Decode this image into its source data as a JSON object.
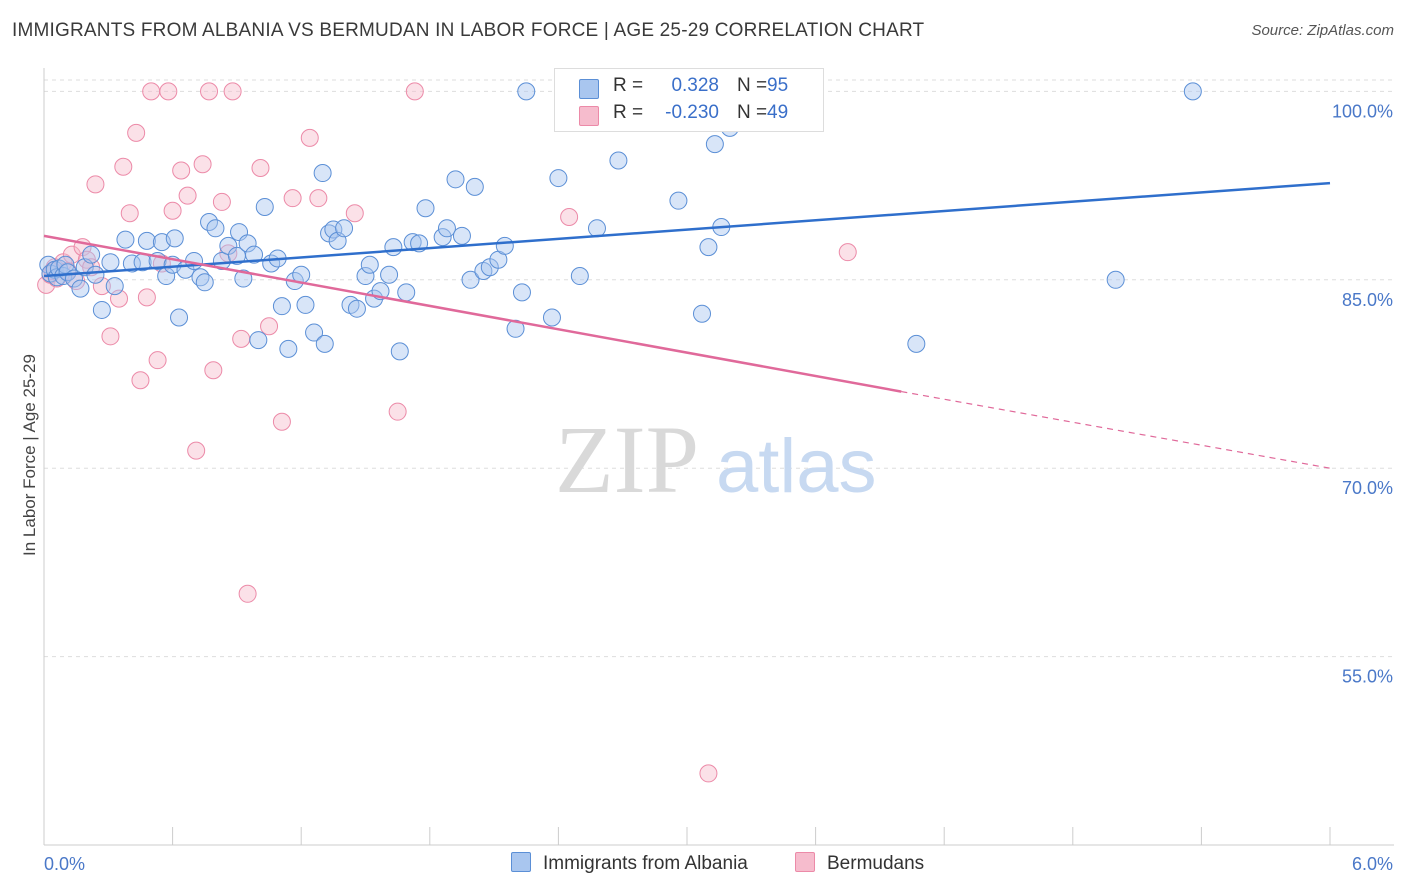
{
  "title": "IMMIGRANTS FROM ALBANIA VS BERMUDAN IN LABOR FORCE | AGE 25-29 CORRELATION CHART",
  "source": "Source: ZipAtlas.com",
  "colors": {
    "blue_fill": "#a9c6ef",
    "blue_stroke": "#5b8fd6",
    "blue_line": "#2f6fcc",
    "pink_fill": "#f6bccd",
    "pink_stroke": "#ec8aa8",
    "pink_line": "#e0699a",
    "grid": "#dddddd",
    "tick_text": "#4a78c8"
  },
  "legend_top": {
    "rows": [
      {
        "r_label": "R =",
        "r_value": "0.328",
        "n_label": "N =",
        "n_value": "95",
        "series": "blue"
      },
      {
        "r_label": "R =",
        "r_value": "-0.230",
        "n_label": "N =",
        "n_value": "49",
        "series": "pink"
      }
    ]
  },
  "legend_bottom": {
    "items": [
      {
        "label": "Immigrants from Albania",
        "series": "blue"
      },
      {
        "label": "Bermudans",
        "series": "pink"
      }
    ]
  },
  "watermark": {
    "zip": "ZIP",
    "atlas": "atlas"
  },
  "chart_data": {
    "type": "scatter",
    "title": "IMMIGRANTS FROM ALBANIA VS BERMUDAN IN LABOR FORCE | AGE 25-29 CORRELATION CHART",
    "xlabel": "",
    "ylabel": "In Labor Force | Age 25-29",
    "xlim": [
      0,
      6
    ],
    "ylim": [
      40,
      102.5
    ],
    "x_tick_labels": [
      "0.0%",
      "6.0%"
    ],
    "y_tick_labels": [
      {
        "value": 100,
        "label": "100.0%"
      },
      {
        "value": 85,
        "label": "85.0%"
      },
      {
        "value": 70,
        "label": "70.0%"
      },
      {
        "value": 55,
        "label": "55.0%"
      }
    ],
    "grid": true,
    "series": [
      {
        "name": "Immigrants from Albania",
        "color": "#5b8fd6",
        "trend": {
          "x": [
            0.0,
            6.0
          ],
          "y": [
            85.3,
            92.7
          ],
          "r": 0.328,
          "n": 95
        },
        "points": [
          [
            0.02,
            86.2
          ],
          [
            0.03,
            85.5
          ],
          [
            0.05,
            85.8
          ],
          [
            0.06,
            85.2
          ],
          [
            0.07,
            85.9
          ],
          [
            0.09,
            85.3
          ],
          [
            0.1,
            86.2
          ],
          [
            0.11,
            85.6
          ],
          [
            0.14,
            85.1
          ],
          [
            0.17,
            84.3
          ],
          [
            0.19,
            86.0
          ],
          [
            0.22,
            87.0
          ],
          [
            0.24,
            85.4
          ],
          [
            0.27,
            82.6
          ],
          [
            0.31,
            86.4
          ],
          [
            0.33,
            84.5
          ],
          [
            0.38,
            88.2
          ],
          [
            0.41,
            86.3
          ],
          [
            0.46,
            86.4
          ],
          [
            0.48,
            88.1
          ],
          [
            0.53,
            86.5
          ],
          [
            0.55,
            88.0
          ],
          [
            0.57,
            85.3
          ],
          [
            0.6,
            86.2
          ],
          [
            0.61,
            88.3
          ],
          [
            0.63,
            82.0
          ],
          [
            0.66,
            85.8
          ],
          [
            0.7,
            86.5
          ],
          [
            0.73,
            85.2
          ],
          [
            0.75,
            84.8
          ],
          [
            0.77,
            89.6
          ],
          [
            0.8,
            89.1
          ],
          [
            0.83,
            86.5
          ],
          [
            0.86,
            87.7
          ],
          [
            0.9,
            86.9
          ],
          [
            0.91,
            88.8
          ],
          [
            0.93,
            85.1
          ],
          [
            0.95,
            87.9
          ],
          [
            0.98,
            87.0
          ],
          [
            1.0,
            80.2
          ],
          [
            1.03,
            90.8
          ],
          [
            1.06,
            86.3
          ],
          [
            1.09,
            86.7
          ],
          [
            1.11,
            82.9
          ],
          [
            1.14,
            79.5
          ],
          [
            1.17,
            84.9
          ],
          [
            1.2,
            85.4
          ],
          [
            1.22,
            83.0
          ],
          [
            1.26,
            80.8
          ],
          [
            1.3,
            93.5
          ],
          [
            1.31,
            79.9
          ],
          [
            1.33,
            88.7
          ],
          [
            1.35,
            89.0
          ],
          [
            1.37,
            88.1
          ],
          [
            1.4,
            89.1
          ],
          [
            1.43,
            83.0
          ],
          [
            1.46,
            82.7
          ],
          [
            1.5,
            85.3
          ],
          [
            1.52,
            86.2
          ],
          [
            1.54,
            83.5
          ],
          [
            1.57,
            84.1
          ],
          [
            1.61,
            85.4
          ],
          [
            1.63,
            87.6
          ],
          [
            1.66,
            79.3
          ],
          [
            1.69,
            84.0
          ],
          [
            1.72,
            88.0
          ],
          [
            1.75,
            87.9
          ],
          [
            1.78,
            90.7
          ],
          [
            1.86,
            88.4
          ],
          [
            1.88,
            89.1
          ],
          [
            1.92,
            93.0
          ],
          [
            1.95,
            88.5
          ],
          [
            1.99,
            85.0
          ],
          [
            2.01,
            92.4
          ],
          [
            2.05,
            85.7
          ],
          [
            2.08,
            86.0
          ],
          [
            2.12,
            86.6
          ],
          [
            2.15,
            87.7
          ],
          [
            2.2,
            81.1
          ],
          [
            2.23,
            84.0
          ],
          [
            2.25,
            100.0
          ],
          [
            2.37,
            82.0
          ],
          [
            2.4,
            93.1
          ],
          [
            2.5,
            85.3
          ],
          [
            2.58,
            89.1
          ],
          [
            2.68,
            94.5
          ],
          [
            2.96,
            91.3
          ],
          [
            3.07,
            82.3
          ],
          [
            3.1,
            87.6
          ],
          [
            3.13,
            95.8
          ],
          [
            3.16,
            89.2
          ],
          [
            5.0,
            85.0
          ],
          [
            4.07,
            79.9
          ],
          [
            5.36,
            100.0
          ],
          [
            3.2,
            97.1
          ]
        ]
      },
      {
        "name": "Bermudans",
        "color": "#ec8aa8",
        "trend": {
          "x": [
            0.0,
            4.0
          ],
          "y": [
            88.5,
            76.1
          ],
          "dashed_to": {
            "x": 6.0,
            "y": 70.0
          },
          "r": -0.23,
          "n": 49
        },
        "points": [
          [
            0.01,
            84.6
          ],
          [
            0.03,
            85.4
          ],
          [
            0.05,
            86.0
          ],
          [
            0.06,
            85.1
          ],
          [
            0.09,
            86.4
          ],
          [
            0.11,
            85.7
          ],
          [
            0.13,
            87.0
          ],
          [
            0.15,
            84.9
          ],
          [
            0.18,
            87.6
          ],
          [
            0.2,
            86.6
          ],
          [
            0.22,
            86.0
          ],
          [
            0.24,
            92.6
          ],
          [
            0.27,
            84.5
          ],
          [
            0.31,
            80.5
          ],
          [
            0.35,
            83.5
          ],
          [
            0.37,
            94.0
          ],
          [
            0.4,
            90.3
          ],
          [
            0.43,
            96.7
          ],
          [
            0.45,
            77.0
          ],
          [
            0.48,
            83.6
          ],
          [
            0.5,
            100.0
          ],
          [
            0.53,
            78.6
          ],
          [
            0.55,
            86.3
          ],
          [
            0.58,
            100.0
          ],
          [
            0.6,
            90.5
          ],
          [
            0.64,
            93.7
          ],
          [
            0.67,
            91.7
          ],
          [
            0.71,
            71.4
          ],
          [
            0.74,
            94.2
          ],
          [
            0.77,
            100.0
          ],
          [
            0.79,
            77.8
          ],
          [
            0.83,
            91.2
          ],
          [
            0.86,
            87.1
          ],
          [
            0.88,
            100.0
          ],
          [
            0.92,
            80.3
          ],
          [
            1.01,
            93.9
          ],
          [
            1.05,
            81.3
          ],
          [
            1.11,
            73.7
          ],
          [
            1.16,
            91.5
          ],
          [
            1.24,
            96.3
          ],
          [
            1.28,
            91.5
          ],
          [
            1.45,
            90.3
          ],
          [
            1.65,
            74.5
          ],
          [
            1.73,
            100.0
          ],
          [
            2.45,
            90.0
          ],
          [
            3.1,
            45.7
          ],
          [
            3.75,
            87.2
          ],
          [
            0.95,
            60.0
          ],
          [
            0.04,
            85.7
          ]
        ]
      }
    ]
  }
}
